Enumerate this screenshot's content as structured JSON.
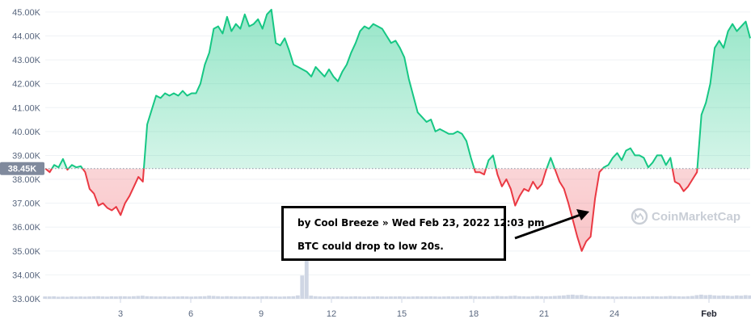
{
  "chart_data": {
    "type": "area",
    "title": "",
    "xlabel": "",
    "ylabel": "",
    "x_tick_labels": [
      "3",
      "6",
      "9",
      "12",
      "15",
      "18",
      "21",
      "24",
      "Feb"
    ],
    "y_tick_labels": [
      "33.00K",
      "34.00K",
      "35.00K",
      "36.00K",
      "37.00K",
      "38.00K",
      "39.00K",
      "40.00K",
      "41.00K",
      "42.00K",
      "43.00K",
      "44.00K",
      "45.00K"
    ],
    "ylim": [
      33000,
      45300
    ],
    "reference_value": 38450,
    "reference_label": "38.45K",
    "series": [
      {
        "values": [
          38450,
          38300,
          38600,
          38500,
          38850,
          38400,
          38600,
          38500,
          38550,
          38300,
          37600,
          37400,
          36900,
          37000,
          36800,
          36700,
          36850,
          36500,
          37000,
          37300,
          37700,
          38100,
          37900,
          40300,
          40900,
          41500,
          41400,
          41600,
          41500,
          41600,
          41500,
          41700,
          41500,
          41600,
          41600,
          42000,
          42800,
          43300,
          44300,
          44400,
          44100,
          44800,
          44200,
          44500,
          44300,
          44900,
          44400,
          44500,
          44700,
          44300,
          44900,
          45100,
          43700,
          43600,
          43900,
          43400,
          42800,
          42700,
          42600,
          42500,
          42300,
          42700,
          42500,
          42300,
          42600,
          42300,
          42100,
          42500,
          42800,
          43300,
          43700,
          44200,
          44400,
          44300,
          44500,
          44400,
          44300,
          44000,
          43700,
          43800,
          43500,
          43100,
          42200,
          41500,
          40800,
          40600,
          40400,
          40500,
          40000,
          40100,
          40000,
          39900,
          39900,
          40000,
          39900,
          39600,
          38900,
          38300,
          38300,
          38200,
          38800,
          39000,
          38200,
          37700,
          38000,
          37600,
          36900,
          37300,
          37600,
          37500,
          37900,
          37600,
          37800,
          38400,
          38900,
          38400,
          37900,
          37600,
          37000,
          36300,
          35600,
          35000,
          35400,
          35600,
          37200,
          38300,
          38500,
          38600,
          38900,
          39100,
          38800,
          39200,
          39300,
          39000,
          39000,
          38900,
          38500,
          38700,
          39000,
          39000,
          38600,
          38900,
          37900,
          37800,
          37500,
          37700,
          38000,
          38300,
          40700,
          41200,
          42000,
          43500,
          43800,
          43500,
          44200,
          44500,
          44200,
          44400,
          44600,
          43900
        ],
        "volume": [
          0.9,
          0.9,
          0.95,
          0.8,
          0.85,
          0.8,
          0.9,
          0.85,
          0.9,
          0.85,
          0.9,
          0.95,
          1.0,
          0.9,
          0.85,
          0.95,
          0.9,
          1.0,
          0.95,
          0.9,
          1.0,
          1.1,
          1.2,
          1.0,
          0.95,
          0.9,
          0.9,
          0.95,
          0.85,
          0.9,
          0.9,
          0.95,
          0.9,
          0.85,
          0.9,
          0.95,
          1.0,
          1.2,
          1.1,
          1.0,
          0.9,
          1.0,
          0.95,
          0.9,
          0.9,
          0.95,
          0.9,
          0.85,
          0.9,
          0.95,
          1.0,
          0.9,
          0.9,
          0.85,
          0.9,
          0.95,
          1.0,
          1.3,
          9.0,
          17.0,
          1.2,
          1.0,
          0.9,
          0.85,
          0.9,
          0.9,
          0.95,
          0.9,
          0.85,
          0.9,
          0.95,
          0.9,
          0.85,
          0.9,
          0.9,
          0.95,
          0.9,
          0.85,
          0.9,
          0.9,
          0.95,
          0.9,
          0.85,
          0.9,
          0.95,
          0.9,
          0.9,
          0.95,
          0.9,
          0.85,
          0.9,
          0.95,
          0.9,
          0.9,
          0.95,
          1.0,
          1.1,
          1.0,
          0.9,
          0.95,
          0.9,
          1.0,
          1.1,
          1.0,
          0.95,
          1.1,
          1.2,
          1.0,
          0.95,
          0.9,
          1.0,
          1.1,
          1.0,
          0.95,
          1.0,
          1.1,
          1.2,
          1.3,
          1.5,
          1.6,
          1.4,
          1.5,
          1.2,
          1.0,
          0.95,
          1.0,
          0.9,
          0.95,
          0.9,
          0.85,
          0.9,
          0.95,
          0.9,
          0.85,
          0.9,
          0.95,
          0.9,
          1.0,
          0.95,
          0.9,
          1.0,
          1.1,
          1.0,
          0.95,
          0.9,
          1.0,
          1.1,
          1.4,
          1.6,
          1.4,
          1.5,
          1.3,
          1.2,
          1.3,
          1.2,
          1.1,
          1.3,
          1.2,
          1.4,
          1.3
        ]
      }
    ],
    "colors": {
      "up": "#16c784",
      "down": "#ea3943",
      "up_fill": "#16c784",
      "down_fill": "#ea3943",
      "grid": "#eff2f5",
      "volume": "#cfd6e4"
    },
    "grid": true,
    "legend": "none"
  },
  "watermark": {
    "text": "CoinMarketCap",
    "icon": "coinmarketcap-logo-icon"
  },
  "annotation": {
    "title": "by Cool Breeze » Wed Feb 23, 2022 12:03 pm",
    "body": "BTC could drop to low 20s.",
    "arrow": "arrow-right-icon"
  }
}
